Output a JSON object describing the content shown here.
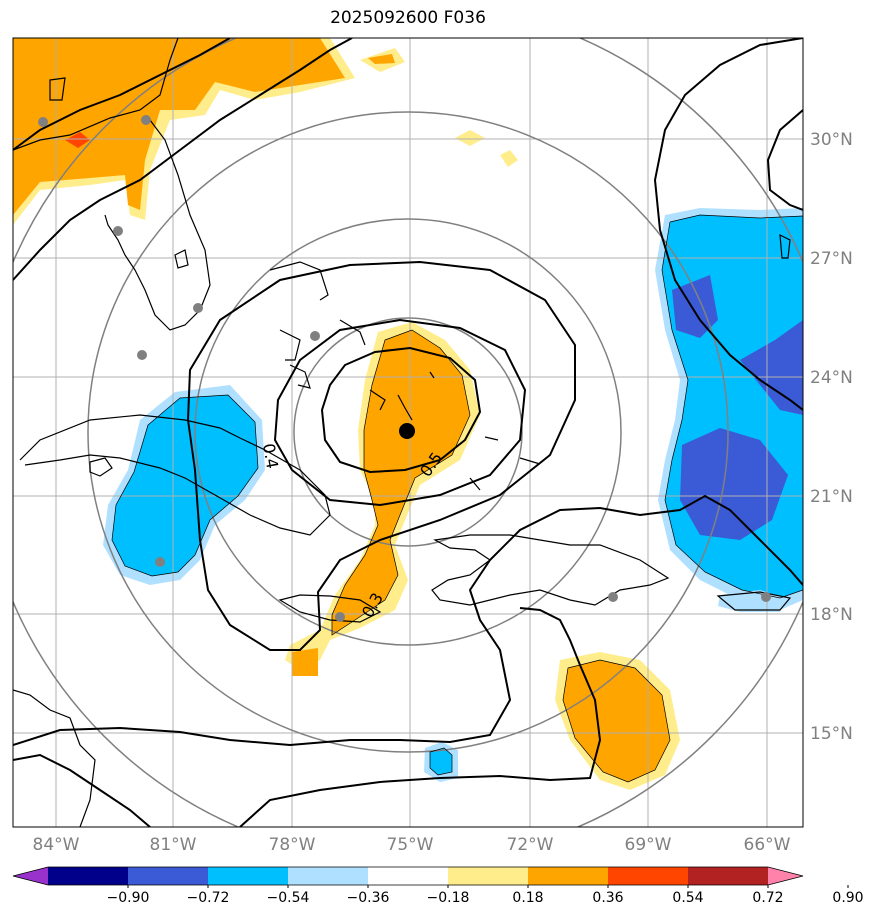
{
  "title": "2025092600 F036",
  "longitude_labels": [
    "84°W",
    "81°W",
    "78°W",
    "75°W",
    "72°W",
    "69°W",
    "66°W"
  ],
  "latitude_labels": [
    "30°N",
    "27°N",
    "24°N",
    "21°N",
    "18°N",
    "15°N"
  ],
  "contour_labels": [
    "0.5",
    "0.4",
    "0.3"
  ],
  "colorbar": {
    "ticks": [
      "−0.90",
      "−0.72",
      "−0.54",
      "−0.36",
      "−0.18",
      "0.18",
      "0.36",
      "0.54",
      "0.72",
      "0.90"
    ],
    "colors": [
      "#9932cc",
      "#00008b",
      "#3b5bd6",
      "#00bfff",
      "#b0e0ff",
      "#ffffff",
      "#ffec8b",
      "#ffa500",
      "#ff4500",
      "#b22222",
      "#ff82ab"
    ]
  },
  "colors": {
    "positive_fill": "#ffa500",
    "positive_edge": "#ffec8b",
    "negative_fill": "#00bfff",
    "negative_edge": "#b0e0ff",
    "strong_negative": "#3b5bd6",
    "strong_positive": "#ff4500",
    "grid": "#b0b0b0",
    "range_rings": "#808080",
    "station_dots": "#808080",
    "center_marker": "#000000"
  }
}
